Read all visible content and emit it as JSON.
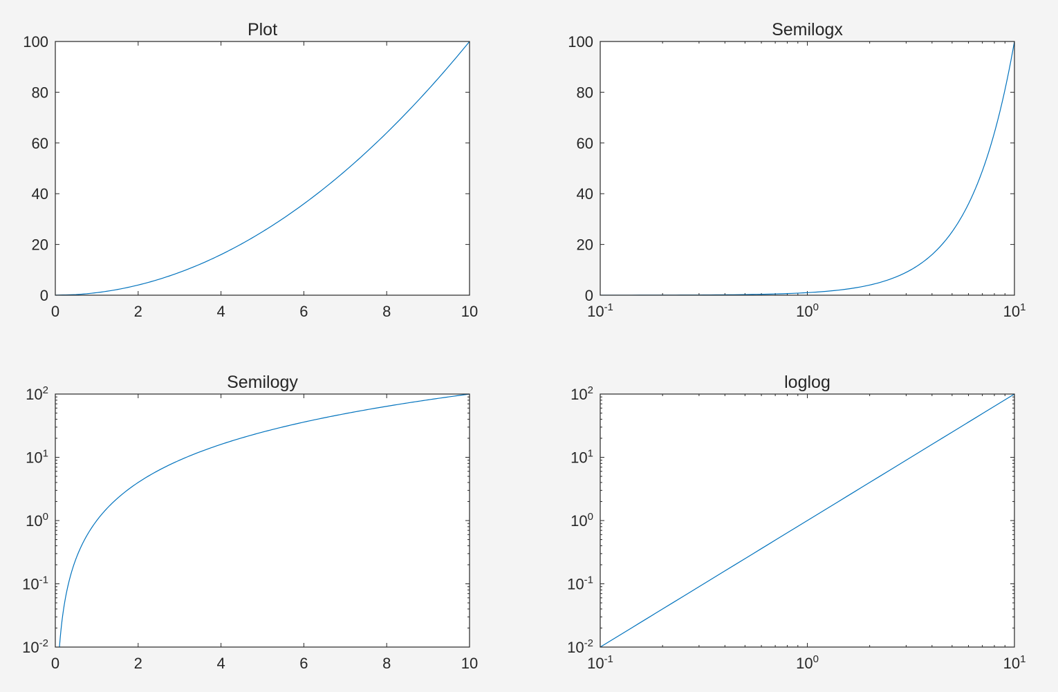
{
  "figure": {
    "background": "#f4f4f4",
    "axes_color": "#262626",
    "line_color": "#0072bd"
  },
  "chart_data": [
    {
      "type": "line",
      "title": "Plot",
      "xlabel": "",
      "ylabel": "",
      "xscale": "linear",
      "yscale": "linear",
      "xlim": [
        0,
        10
      ],
      "ylim": [
        0,
        100
      ],
      "xticks": [
        0,
        2,
        4,
        6,
        8,
        10
      ],
      "xtick_labels": [
        "0",
        "2",
        "4",
        "6",
        "8",
        "10"
      ],
      "yticks": [
        0,
        20,
        40,
        60,
        80,
        100
      ],
      "ytick_labels": [
        "0",
        "20",
        "40",
        "60",
        "80",
        "100"
      ],
      "grid": false,
      "series": [
        {
          "x": [
            0,
            0.5,
            1,
            1.5,
            2,
            2.5,
            3,
            3.5,
            4,
            4.5,
            5,
            5.5,
            6,
            6.5,
            7,
            7.5,
            8,
            8.5,
            9,
            9.5,
            10
          ],
          "y": [
            0,
            0.25,
            1,
            2.25,
            4,
            6.25,
            9,
            12.25,
            16,
            20.25,
            25,
            30.25,
            36,
            42.25,
            49,
            56.25,
            64,
            72.25,
            81,
            90.25,
            100
          ]
        }
      ]
    },
    {
      "type": "line",
      "title": "Semilogx",
      "xlabel": "",
      "ylabel": "",
      "xscale": "log",
      "yscale": "linear",
      "xlim": [
        0.1,
        10
      ],
      "ylim": [
        0,
        100
      ],
      "xticks": [
        0.1,
        1,
        10
      ],
      "xtick_labels": [
        [
          "10",
          "-1"
        ],
        [
          "10",
          "0"
        ],
        [
          "10",
          "1"
        ]
      ],
      "yticks": [
        0,
        20,
        40,
        60,
        80,
        100
      ],
      "ytick_labels": [
        "0",
        "20",
        "40",
        "60",
        "80",
        "100"
      ],
      "grid": false,
      "series": [
        {
          "x": [
            0.1,
            0.2,
            0.3,
            0.5,
            0.7,
            1,
            1.5,
            2,
            2.5,
            3,
            3.5,
            4,
            4.5,
            5,
            5.5,
            6,
            6.5,
            7,
            7.5,
            8,
            8.5,
            9,
            9.5,
            10
          ],
          "y": [
            0.01,
            0.04,
            0.09,
            0.25,
            0.49,
            1,
            2.25,
            4,
            6.25,
            9,
            12.25,
            16,
            20.25,
            25,
            30.25,
            36,
            42.25,
            49,
            56.25,
            64,
            72.25,
            81,
            90.25,
            100
          ]
        }
      ]
    },
    {
      "type": "line",
      "title": "Semilogy",
      "xlabel": "",
      "ylabel": "",
      "xscale": "linear",
      "yscale": "log",
      "xlim": [
        0,
        10
      ],
      "ylim": [
        0.01,
        100
      ],
      "xticks": [
        0,
        2,
        4,
        6,
        8,
        10
      ],
      "xtick_labels": [
        "0",
        "2",
        "4",
        "6",
        "8",
        "10"
      ],
      "yticks": [
        0.01,
        0.1,
        1,
        10,
        100
      ],
      "ytick_labels": [
        [
          "10",
          "-2"
        ],
        [
          "10",
          "-1"
        ],
        [
          "10",
          "0"
        ],
        [
          "10",
          "1"
        ],
        [
          "10",
          "2"
        ]
      ],
      "grid": false,
      "series": [
        {
          "x": [
            0.1,
            0.15,
            0.2,
            0.3,
            0.4,
            0.5,
            0.7,
            1,
            1.5,
            2,
            2.5,
            3,
            3.5,
            4,
            4.5,
            5,
            5.5,
            6,
            6.5,
            7,
            7.5,
            8,
            8.5,
            9,
            9.5,
            10
          ],
          "y": [
            0.01,
            0.0225,
            0.04,
            0.09,
            0.16,
            0.25,
            0.49,
            1,
            2.25,
            4,
            6.25,
            9,
            12.25,
            16,
            20.25,
            25,
            30.25,
            36,
            42.25,
            49,
            56.25,
            64,
            72.25,
            81,
            90.25,
            100
          ]
        }
      ]
    },
    {
      "type": "line",
      "title": "loglog",
      "xlabel": "",
      "ylabel": "",
      "xscale": "log",
      "yscale": "log",
      "xlim": [
        0.1,
        10
      ],
      "ylim": [
        0.01,
        100
      ],
      "xticks": [
        0.1,
        1,
        10
      ],
      "xtick_labels": [
        [
          "10",
          "-1"
        ],
        [
          "10",
          "0"
        ],
        [
          "10",
          "1"
        ]
      ],
      "yticks": [
        0.01,
        0.1,
        1,
        10,
        100
      ],
      "ytick_labels": [
        [
          "10",
          "-2"
        ],
        [
          "10",
          "-1"
        ],
        [
          "10",
          "0"
        ],
        [
          "10",
          "1"
        ],
        [
          "10",
          "2"
        ]
      ],
      "grid": false,
      "series": [
        {
          "x": [
            0.1,
            0.2,
            0.5,
            1,
            2,
            5,
            10
          ],
          "y": [
            0.01,
            0.04,
            0.25,
            1,
            4,
            25,
            100
          ]
        }
      ]
    }
  ]
}
